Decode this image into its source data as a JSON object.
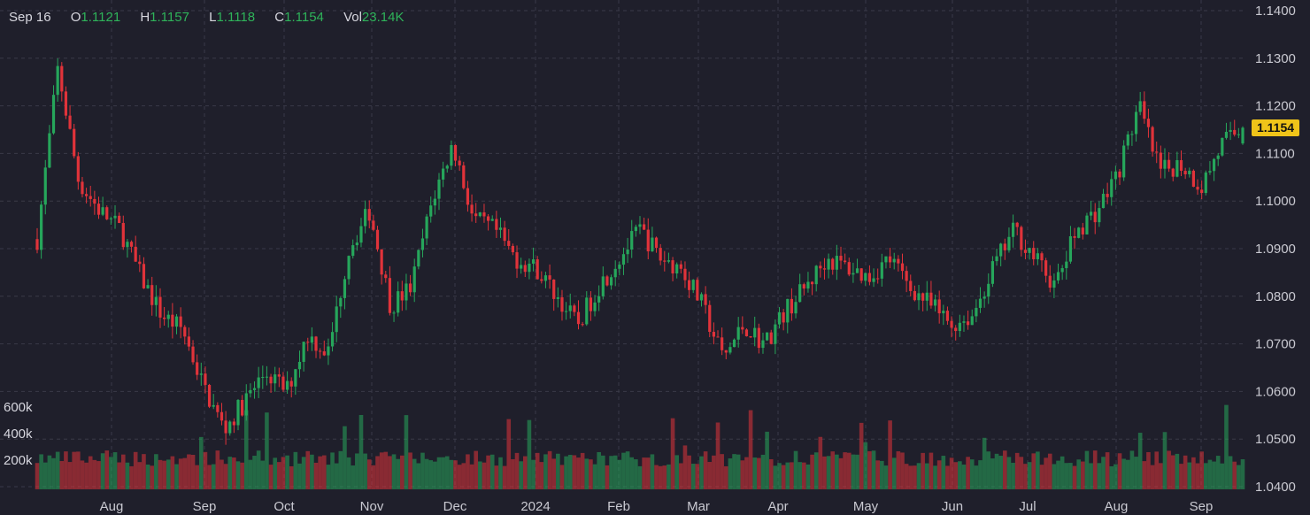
{
  "legend": {
    "date": "Sep 16",
    "open_label": "O",
    "open": "1.1121",
    "high_label": "H",
    "high": "1.1157",
    "low_label": "L",
    "low": "1.1118",
    "close_label": "C",
    "close": "1.1154",
    "vol_label": "Vol",
    "vol": "23.14K"
  },
  "last_price_label": "1.1154",
  "colors": {
    "background": "#1f1f2b",
    "up": "#26a65b",
    "down": "#e0333a",
    "grid": "#3a3a48",
    "badge": "#f0c419"
  },
  "chart_data": {
    "type": "candlestick",
    "price_axis": {
      "min": 1.04,
      "max": 1.14,
      "ticks": [
        "1.1400",
        "1.1300",
        "1.1200",
        "1.1100",
        "1.1000",
        "1.0900",
        "1.0800",
        "1.0700",
        "1.0600",
        "1.0500",
        "1.0400"
      ]
    },
    "volume_axis": {
      "ticks": [
        "600k",
        "400k",
        "200k"
      ]
    },
    "x_ticks": [
      "Aug",
      "Sep",
      "Oct",
      "Nov",
      "Dec",
      "2024",
      "Feb",
      "Mar",
      "Apr",
      "May",
      "Jun",
      "Jul",
      "Aug",
      "Sep"
    ],
    "close_path": [
      1.092,
      1.128,
      1.104,
      1.098,
      1.094,
      1.084,
      1.076,
      1.073,
      1.061,
      1.052,
      1.058,
      1.064,
      1.06,
      1.072,
      1.068,
      1.09,
      1.098,
      1.078,
      1.082,
      1.1,
      1.112,
      1.096,
      1.094,
      1.088,
      1.086,
      1.08,
      1.074,
      1.082,
      1.088,
      1.094,
      1.088,
      1.086,
      1.078,
      1.067,
      1.074,
      1.07,
      1.077,
      1.082,
      1.088,
      1.086,
      1.084,
      1.088,
      1.082,
      1.078,
      1.074,
      1.076,
      1.086,
      1.094,
      1.088,
      1.082,
      1.094,
      1.098,
      1.106,
      1.12,
      1.106,
      1.108,
      1.103,
      1.112,
      1.1154
    ],
    "last": {
      "open": 1.1121,
      "high": 1.1157,
      "low": 1.1118,
      "close": 1.1154,
      "volume": "23.14K"
    }
  }
}
